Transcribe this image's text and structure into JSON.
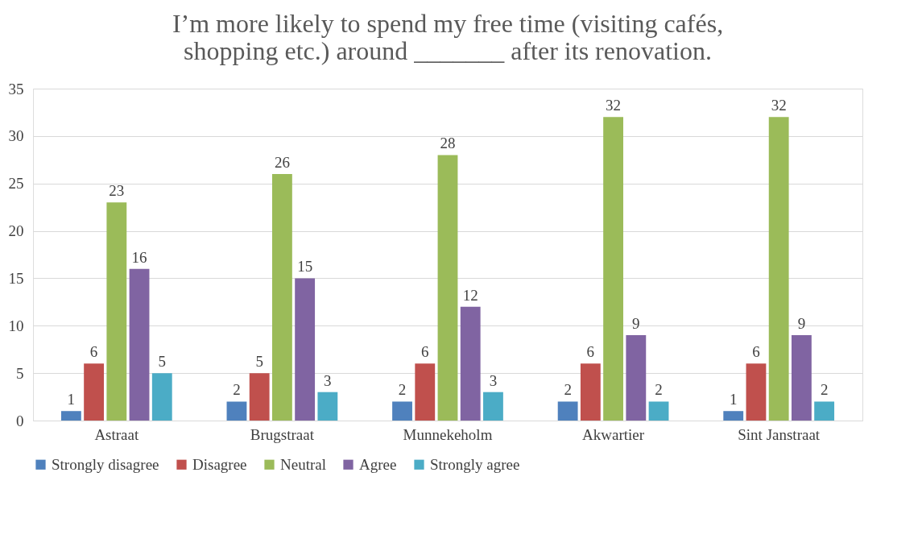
{
  "chart_data": {
    "type": "bar",
    "title": "I’m more likely to spend my free time (visiting cafés, shopping etc.) around _______ after its renovation.",
    "categories": [
      "Astraat",
      "Brugstraat",
      "Munnekeholm",
      "Akwartier",
      "Sint Janstraat"
    ],
    "series": [
      {
        "name": "Strongly disagree",
        "color": "#4f81bd",
        "values": [
          1,
          2,
          2,
          2,
          1
        ]
      },
      {
        "name": "Disagree",
        "color": "#c0504d",
        "values": [
          6,
          5,
          6,
          6,
          6
        ]
      },
      {
        "name": "Neutral",
        "color": "#9bbb59",
        "values": [
          23,
          26,
          28,
          32,
          32
        ]
      },
      {
        "name": "Agree",
        "color": "#8064a2",
        "values": [
          16,
          15,
          12,
          9,
          9
        ]
      },
      {
        "name": "Strongly agree",
        "color": "#4bacc6",
        "values": [
          5,
          3,
          3,
          2,
          2
        ]
      }
    ],
    "ylim": [
      0,
      35
    ],
    "yticks": [
      0,
      5,
      10,
      15,
      20,
      25,
      30,
      35
    ],
    "grid": "y",
    "legend": "bottom",
    "data_labels": true
  }
}
